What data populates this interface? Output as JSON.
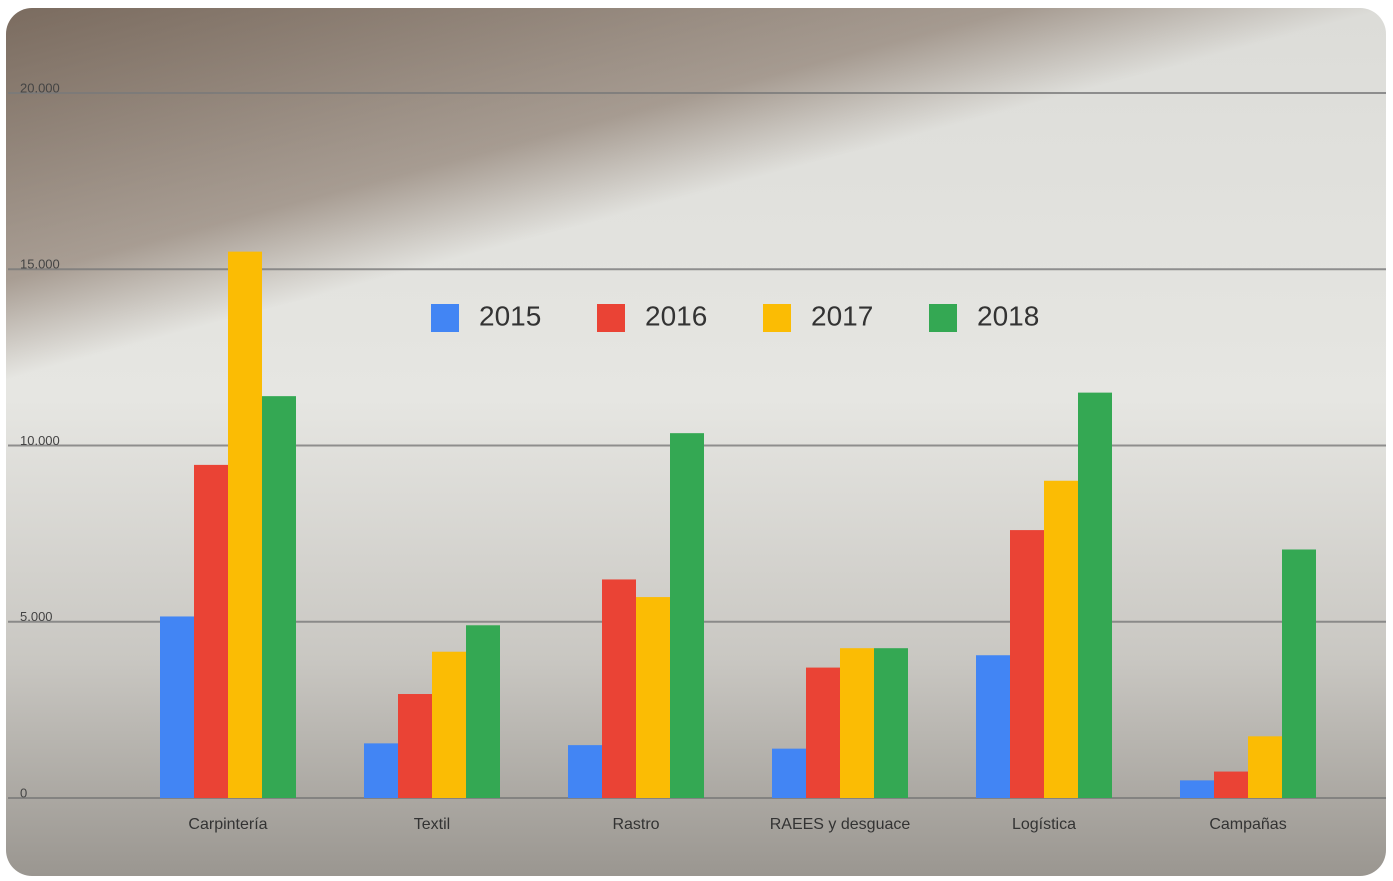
{
  "chart_data": {
    "type": "bar",
    "categories": [
      "Carpintería",
      "Textil",
      "Rastro",
      "RAEES y desguace",
      "Logística",
      "Campañas"
    ],
    "series": [
      {
        "name": "2015",
        "color": "#4285f4",
        "values": [
          5150,
          1550,
          1500,
          1400,
          4050,
          500
        ]
      },
      {
        "name": "2016",
        "color": "#ea4335",
        "values": [
          9450,
          2950,
          6200,
          3700,
          7600,
          750
        ]
      },
      {
        "name": "2017",
        "color": "#fbbc04",
        "values": [
          15500,
          4150,
          5700,
          4250,
          9000,
          1750
        ]
      },
      {
        "name": "2018",
        "color": "#34a853",
        "values": [
          11400,
          4900,
          10350,
          4250,
          11500,
          7050
        ]
      }
    ],
    "ylim": [
      0,
      20000
    ],
    "yticks": [
      0,
      {
        "value": 5000,
        "label": "5.000"
      },
      {
        "value": 10000,
        "label": "10.000"
      },
      {
        "value": 15000,
        "label": "15.000"
      },
      {
        "value": 20000,
        "label": "20.000"
      }
    ],
    "grid": true,
    "legend": "top"
  }
}
